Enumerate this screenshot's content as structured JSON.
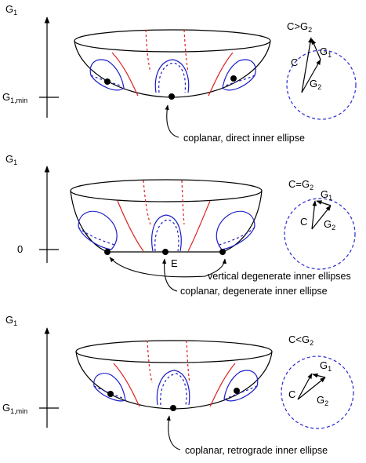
{
  "panels": [
    {
      "axis_label": {
        "main": "G",
        "sub": "1"
      },
      "axis_tick": {
        "main": "G",
        "sub": "1,min"
      },
      "condition": {
        "main": "C>G",
        "sub": "2"
      },
      "vectors": {
        "c": "C",
        "g1_main": "G",
        "g1_sub": "1",
        "g2_main": "G",
        "g2_sub": "2"
      },
      "caption": "coplanar, direct inner ellipse"
    },
    {
      "axis_label": {
        "main": "G",
        "sub": "1"
      },
      "axis_tick": {
        "main": "0",
        "sub": ""
      },
      "condition": {
        "main": "C=G",
        "sub": "2"
      },
      "vectors": {
        "c": "C",
        "g1_main": "G",
        "g1_sub": "1",
        "g2_main": "G",
        "g2_sub": "2"
      },
      "point_label": "E",
      "caption_vertical": "vertical degenerate inner ellipses",
      "caption": "coplanar, degenerate inner  ellipse"
    },
    {
      "axis_label": {
        "main": "G",
        "sub": "1"
      },
      "axis_tick": {
        "main": "G",
        "sub": "1,min"
      },
      "condition": {
        "main": "C<G",
        "sub": "2"
      },
      "vectors": {
        "c": "C",
        "g1_main": "G",
        "g1_sub": "1",
        "g2_main": "G",
        "g2_sub": "2"
      },
      "caption": "coplanar, retrograde inner ellipse"
    }
  ],
  "colors": {
    "stroke": "#000000",
    "blue": "#1c1cc8",
    "red": "#e02020",
    "dashed_circle": "#2a2ad0"
  }
}
